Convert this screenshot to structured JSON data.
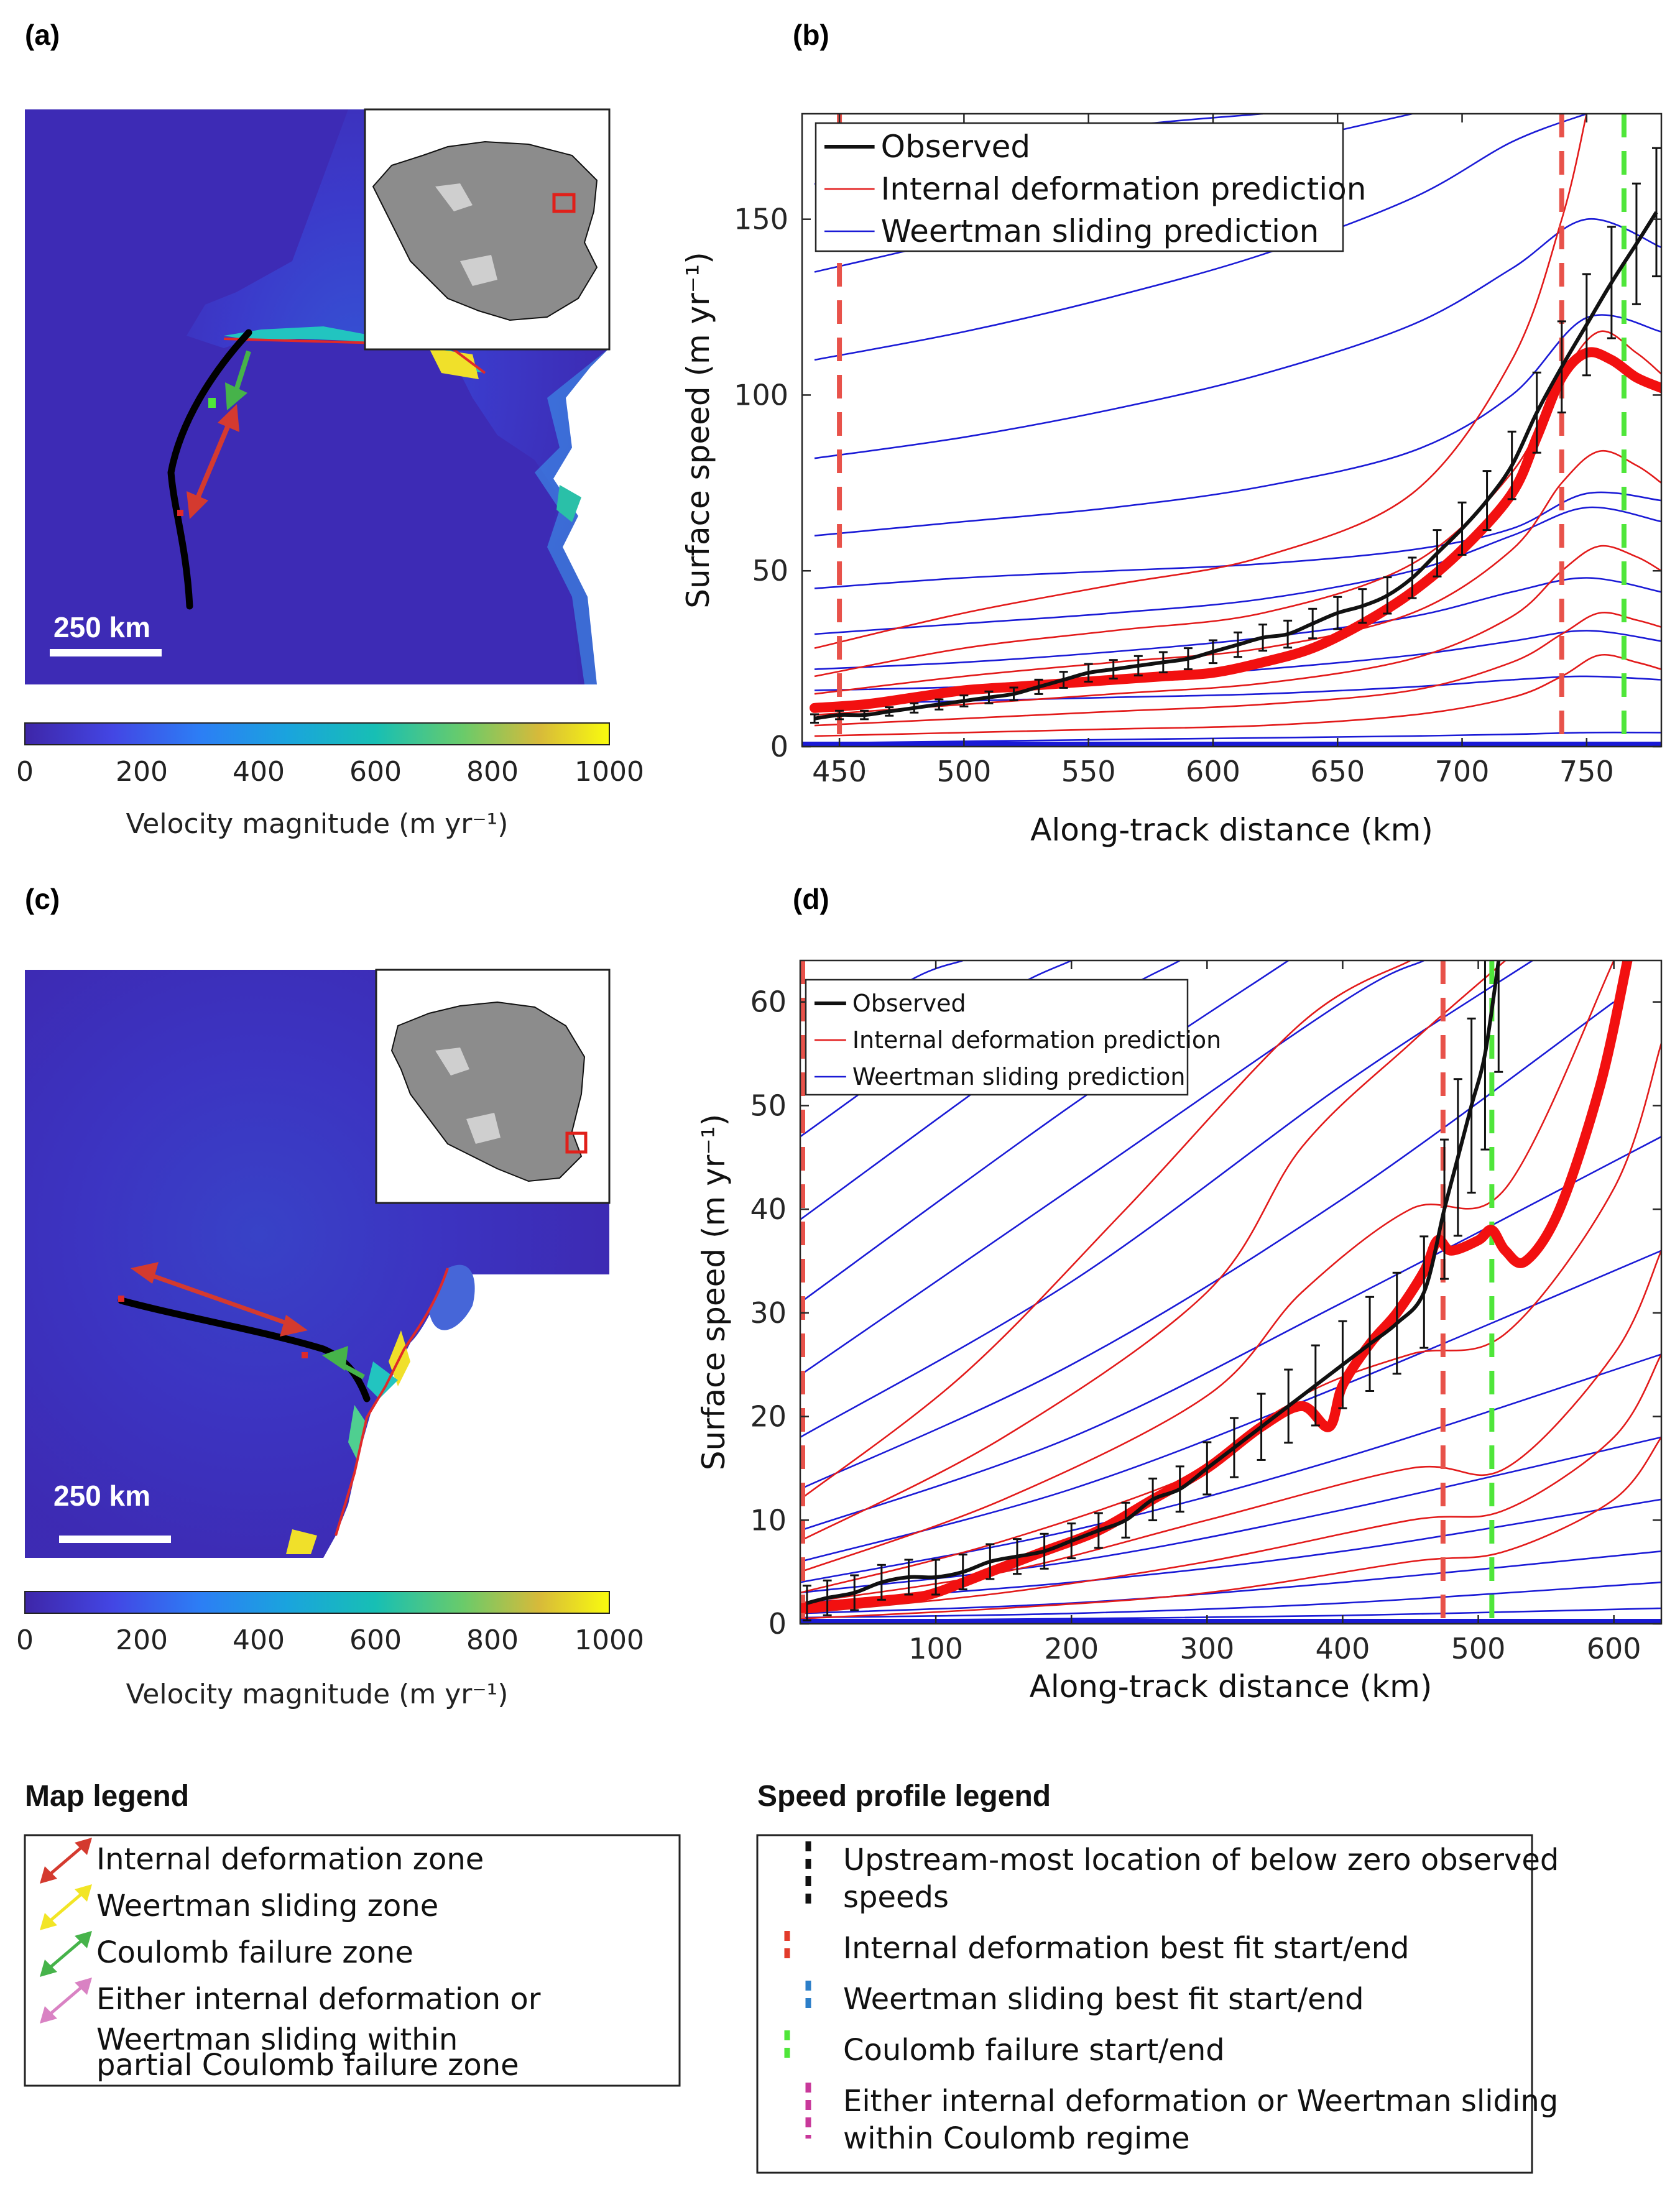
{
  "panels": {
    "a": {
      "label": "(a)",
      "scale_bar": "250 km",
      "colorbar_ticks": [
        "0",
        "200",
        "400",
        "600",
        "800",
        "1000"
      ],
      "colorbar_label": "Velocity magnitude (m yr⁻¹)"
    },
    "c": {
      "label": "(c)",
      "scale_bar": "250 km",
      "colorbar_ticks": [
        "0",
        "200",
        "400",
        "600",
        "800",
        "1000"
      ],
      "colorbar_label": "Velocity magnitude (m yr⁻¹)"
    },
    "b": {
      "label": "(b)"
    },
    "d": {
      "label": "(d)"
    }
  },
  "chart_data": [
    {
      "id": "b",
      "type": "line",
      "xlabel": "Along-track distance (km)",
      "ylabel": "Surface speed (m yr⁻¹)",
      "xlim": [
        435,
        780
      ],
      "ylim": [
        0,
        180
      ],
      "xticks": [
        450,
        500,
        550,
        600,
        650,
        700,
        750
      ],
      "yticks": [
        0,
        50,
        100,
        150
      ],
      "legend": [
        "Observed",
        "Internal deformation prediction",
        "Weertman sliding prediction"
      ],
      "vlines": [
        {
          "x": 450,
          "color": "#e8524a"
        },
        {
          "x": 740,
          "color": "#e8524a"
        },
        {
          "x": 765,
          "color": "#4fe63a"
        }
      ],
      "observed": {
        "x": [
          440,
          450,
          460,
          470,
          480,
          490,
          500,
          510,
          520,
          530,
          540,
          550,
          560,
          570,
          580,
          590,
          600,
          610,
          620,
          630,
          640,
          650,
          660,
          670,
          680,
          690,
          700,
          710,
          720,
          730,
          740,
          750,
          760,
          770,
          778
        ],
        "y": [
          8,
          9,
          9,
          10,
          11,
          12,
          13,
          14,
          15,
          17,
          19,
          21,
          22,
          23,
          24,
          25,
          27,
          29,
          31,
          32,
          35,
          38,
          40,
          43,
          48,
          55,
          62,
          70,
          80,
          95,
          108,
          120,
          132,
          143,
          152
        ]
      },
      "best_fit_internal": {
        "x": [
          440,
          460,
          480,
          500,
          520,
          540,
          560,
          580,
          600,
          620,
          640,
          660,
          680,
          700,
          720,
          730,
          740,
          750,
          760,
          770,
          780
        ],
        "y": [
          11,
          12,
          14,
          16,
          17,
          18,
          19,
          20,
          21,
          24,
          28,
          35,
          44,
          56,
          72,
          88,
          105,
          112,
          110,
          105,
          102
        ]
      },
      "internal_curves": [
        {
          "x": [
            440,
            500,
            560,
            620,
            680,
            720,
            740,
            755,
            770,
            780
          ],
          "y": [
            3,
            4,
            5,
            6,
            9,
            14,
            20,
            26,
            24,
            22
          ]
        },
        {
          "x": [
            440,
            500,
            560,
            620,
            680,
            720,
            740,
            755,
            770,
            780
          ],
          "y": [
            6,
            8,
            10,
            12,
            16,
            24,
            32,
            38,
            36,
            34
          ]
        },
        {
          "x": [
            440,
            500,
            560,
            620,
            680,
            720,
            740,
            755,
            770,
            780
          ],
          "y": [
            9,
            12,
            15,
            18,
            25,
            37,
            50,
            57,
            54,
            50
          ]
        },
        {
          "x": [
            440,
            500,
            560,
            620,
            680,
            720,
            740,
            755,
            770,
            780
          ],
          "y": [
            15,
            20,
            24,
            28,
            38,
            56,
            75,
            84,
            80,
            75
          ]
        },
        {
          "x": [
            440,
            500,
            560,
            620,
            680,
            720,
            740,
            755,
            770,
            780
          ],
          "y": [
            20,
            28,
            33,
            38,
            52,
            78,
            105,
            118,
            112,
            106
          ]
        },
        {
          "x": [
            440,
            500,
            560,
            620,
            680,
            720,
            740,
            750
          ],
          "y": [
            28,
            38,
            46,
            54,
            72,
            110,
            150,
            180
          ]
        }
      ],
      "weertman_curves": [
        {
          "x": [
            440,
            500,
            560,
            620,
            680,
            720,
            750,
            780
          ],
          "y": [
            1,
            1.5,
            2,
            2.5,
            3,
            3.5,
            4,
            4
          ]
        },
        {
          "x": [
            440,
            500,
            560,
            620,
            680,
            720,
            750,
            780
          ],
          "y": [
            12,
            13,
            14,
            15,
            17,
            19,
            20,
            19
          ]
        },
        {
          "x": [
            440,
            500,
            560,
            620,
            680,
            720,
            750,
            780
          ],
          "y": [
            16,
            17,
            19,
            22,
            26,
            30,
            33,
            30
          ]
        },
        {
          "x": [
            440,
            500,
            560,
            620,
            680,
            720,
            750,
            780
          ],
          "y": [
            22,
            24,
            27,
            31,
            37,
            44,
            48,
            44
          ]
        },
        {
          "x": [
            440,
            500,
            560,
            620,
            680,
            720,
            750,
            780
          ],
          "y": [
            32,
            35,
            38,
            42,
            50,
            60,
            68,
            64
          ]
        },
        {
          "x": [
            440,
            500,
            560,
            620,
            680,
            720,
            750,
            780
          ],
          "y": [
            45,
            48,
            50,
            52,
            56,
            62,
            72,
            70
          ]
        },
        {
          "x": [
            440,
            500,
            560,
            620,
            680,
            720,
            750,
            780
          ],
          "y": [
            60,
            64,
            68,
            74,
            84,
            100,
            122,
            118
          ]
        },
        {
          "x": [
            440,
            500,
            560,
            620,
            680,
            720,
            750,
            780
          ],
          "y": [
            82,
            88,
            96,
            106,
            120,
            136,
            150,
            142
          ]
        },
        {
          "x": [
            440,
            500,
            560,
            620,
            680,
            720,
            750
          ],
          "y": [
            110,
            118,
            128,
            140,
            156,
            172,
            180
          ]
        },
        {
          "x": [
            440,
            500,
            560,
            620,
            680
          ],
          "y": [
            135,
            145,
            157,
            170,
            180
          ]
        },
        {
          "x": [
            440,
            500,
            560,
            620
          ],
          "y": [
            160,
            168,
            176,
            180
          ]
        }
      ]
    },
    {
      "id": "d",
      "type": "line",
      "xlabel": "Along-track distance (km)",
      "ylabel": "Surface speed (m yr⁻¹)",
      "xlim": [
        0,
        635
      ],
      "ylim": [
        0,
        64
      ],
      "xticks": [
        100,
        200,
        300,
        400,
        500,
        600
      ],
      "yticks": [
        0,
        10,
        20,
        30,
        40,
        50,
        60
      ],
      "legend": [
        "Observed",
        "Internal deformation prediction",
        "Weertman sliding prediction"
      ],
      "vlines": [
        {
          "x": 0,
          "color": "#e8524a"
        },
        {
          "x": 474,
          "color": "#e8524a"
        },
        {
          "x": 510,
          "color": "#4fe63a"
        }
      ],
      "observed": {
        "x": [
          5,
          20,
          40,
          60,
          80,
          100,
          120,
          140,
          160,
          180,
          200,
          220,
          240,
          260,
          280,
          300,
          320,
          340,
          360,
          380,
          400,
          420,
          440,
          460,
          475,
          485,
          495,
          505,
          515
        ],
        "y": [
          2,
          2.5,
          3,
          4,
          4.5,
          4.5,
          5,
          6,
          6.5,
          7,
          8,
          9,
          10,
          12,
          13,
          15,
          17,
          19,
          21,
          23,
          25,
          27,
          29,
          32,
          40,
          45,
          50,
          55,
          64
        ]
      },
      "best_fit_internal": {
        "x": [
          0,
          40,
          80,
          100,
          140,
          180,
          220,
          260,
          300,
          340,
          370,
          390,
          400,
          420,
          440,
          460,
          470,
          480,
          500,
          510,
          520,
          535,
          560,
          590,
          610
        ],
        "y": [
          1.5,
          2,
          2.5,
          3,
          5,
          7,
          9,
          12,
          15,
          19,
          21,
          19,
          23,
          27,
          30,
          34,
          37,
          36,
          37,
          38,
          36,
          35,
          40,
          52,
          64
        ]
      },
      "internal_curves": [
        {
          "x": [
            0,
            150,
            300,
            450,
            520,
            600,
            635
          ],
          "y": [
            0.5,
            1.5,
            3,
            6,
            7,
            12,
            18
          ]
        },
        {
          "x": [
            0,
            150,
            300,
            450,
            520,
            600,
            635
          ],
          "y": [
            1,
            3,
            6,
            10,
            11,
            18,
            26
          ]
        },
        {
          "x": [
            0,
            150,
            300,
            450,
            520,
            600,
            635
          ],
          "y": [
            2,
            5,
            10,
            15,
            15,
            26,
            36
          ]
        },
        {
          "x": [
            0,
            150,
            300,
            370,
            450,
            520,
            600,
            635
          ],
          "y": [
            3,
            8,
            15,
            22,
            26,
            28,
            42,
            56
          ]
        },
        {
          "x": [
            0,
            150,
            300,
            370,
            450,
            520,
            600
          ],
          "y": [
            5,
            12,
            22,
            32,
            40,
            42,
            64
          ]
        },
        {
          "x": [
            0,
            150,
            300,
            370,
            450,
            520
          ],
          "y": [
            8,
            18,
            32,
            46,
            56,
            64
          ]
        },
        {
          "x": [
            0,
            120,
            240,
            370,
            450
          ],
          "y": [
            12,
            24,
            40,
            58,
            64
          ]
        }
      ],
      "weertman_curves": [
        {
          "x": [
            0,
            200,
            400,
            635
          ],
          "y": [
            0.3,
            0.5,
            0.8,
            1.5
          ]
        },
        {
          "x": [
            0,
            200,
            400,
            635
          ],
          "y": [
            0.6,
            1,
            2,
            4
          ]
        },
        {
          "x": [
            0,
            200,
            400,
            635
          ],
          "y": [
            1,
            2,
            4,
            7
          ]
        },
        {
          "x": [
            0,
            200,
            400,
            635
          ],
          "y": [
            2,
            4,
            7,
            12
          ]
        },
        {
          "x": [
            0,
            200,
            400,
            635
          ],
          "y": [
            3,
            6,
            11,
            18
          ]
        },
        {
          "x": [
            0,
            200,
            400,
            635
          ],
          "y": [
            4,
            9,
            16,
            26
          ]
        },
        {
          "x": [
            0,
            200,
            400,
            635
          ],
          "y": [
            6,
            13,
            23,
            36
          ]
        },
        {
          "x": [
            0,
            200,
            400,
            635
          ],
          "y": [
            9,
            18,
            31,
            47
          ]
        },
        {
          "x": [
            0,
            200,
            400,
            600
          ],
          "y": [
            13,
            25,
            41,
            60
          ]
        },
        {
          "x": [
            0,
            200,
            400,
            540
          ],
          "y": [
            18,
            33,
            52,
            64
          ]
        },
        {
          "x": [
            0,
            200,
            400,
            460
          ],
          "y": [
            24,
            42,
            60,
            64
          ]
        },
        {
          "x": [
            0,
            200,
            360
          ],
          "y": [
            31,
            50,
            64
          ]
        },
        {
          "x": [
            0,
            200,
            280
          ],
          "y": [
            39,
            58,
            64
          ]
        },
        {
          "x": [
            0,
            140,
            200
          ],
          "y": [
            47,
            60,
            64
          ]
        },
        {
          "x": [
            0,
            80,
            120
          ],
          "y": [
            55,
            62,
            64
          ]
        }
      ]
    }
  ],
  "map_legend": {
    "title": "Map legend",
    "items": [
      {
        "label": "Internal deformation zone",
        "color": "#d43a2f"
      },
      {
        "label": "Weertman sliding zone",
        "color": "#f2e526"
      },
      {
        "label": "Coulomb failure zone",
        "color": "#46b34a"
      },
      {
        "label": "Either internal deformation or",
        "line2": "Weertman sliding within",
        "line3": "partial Coulomb failure zone",
        "color": "#d982c3"
      }
    ]
  },
  "profile_legend": {
    "title": "Speed profile legend",
    "items": [
      {
        "label": "Upstream-most location of below zero observed",
        "line2": "speeds",
        "color": "#111111"
      },
      {
        "label": "Internal deformation best fit start/end",
        "color": "#e23b2b"
      },
      {
        "label": "Weertman sliding best fit start/end",
        "color": "#2c7fc9"
      },
      {
        "label": "Coulomb failure start/end",
        "color": "#4fe63a"
      },
      {
        "label": "Either internal deformation or Weertman sliding",
        "line2": "within Coulomb regime",
        "color": "#c8389a"
      }
    ]
  }
}
